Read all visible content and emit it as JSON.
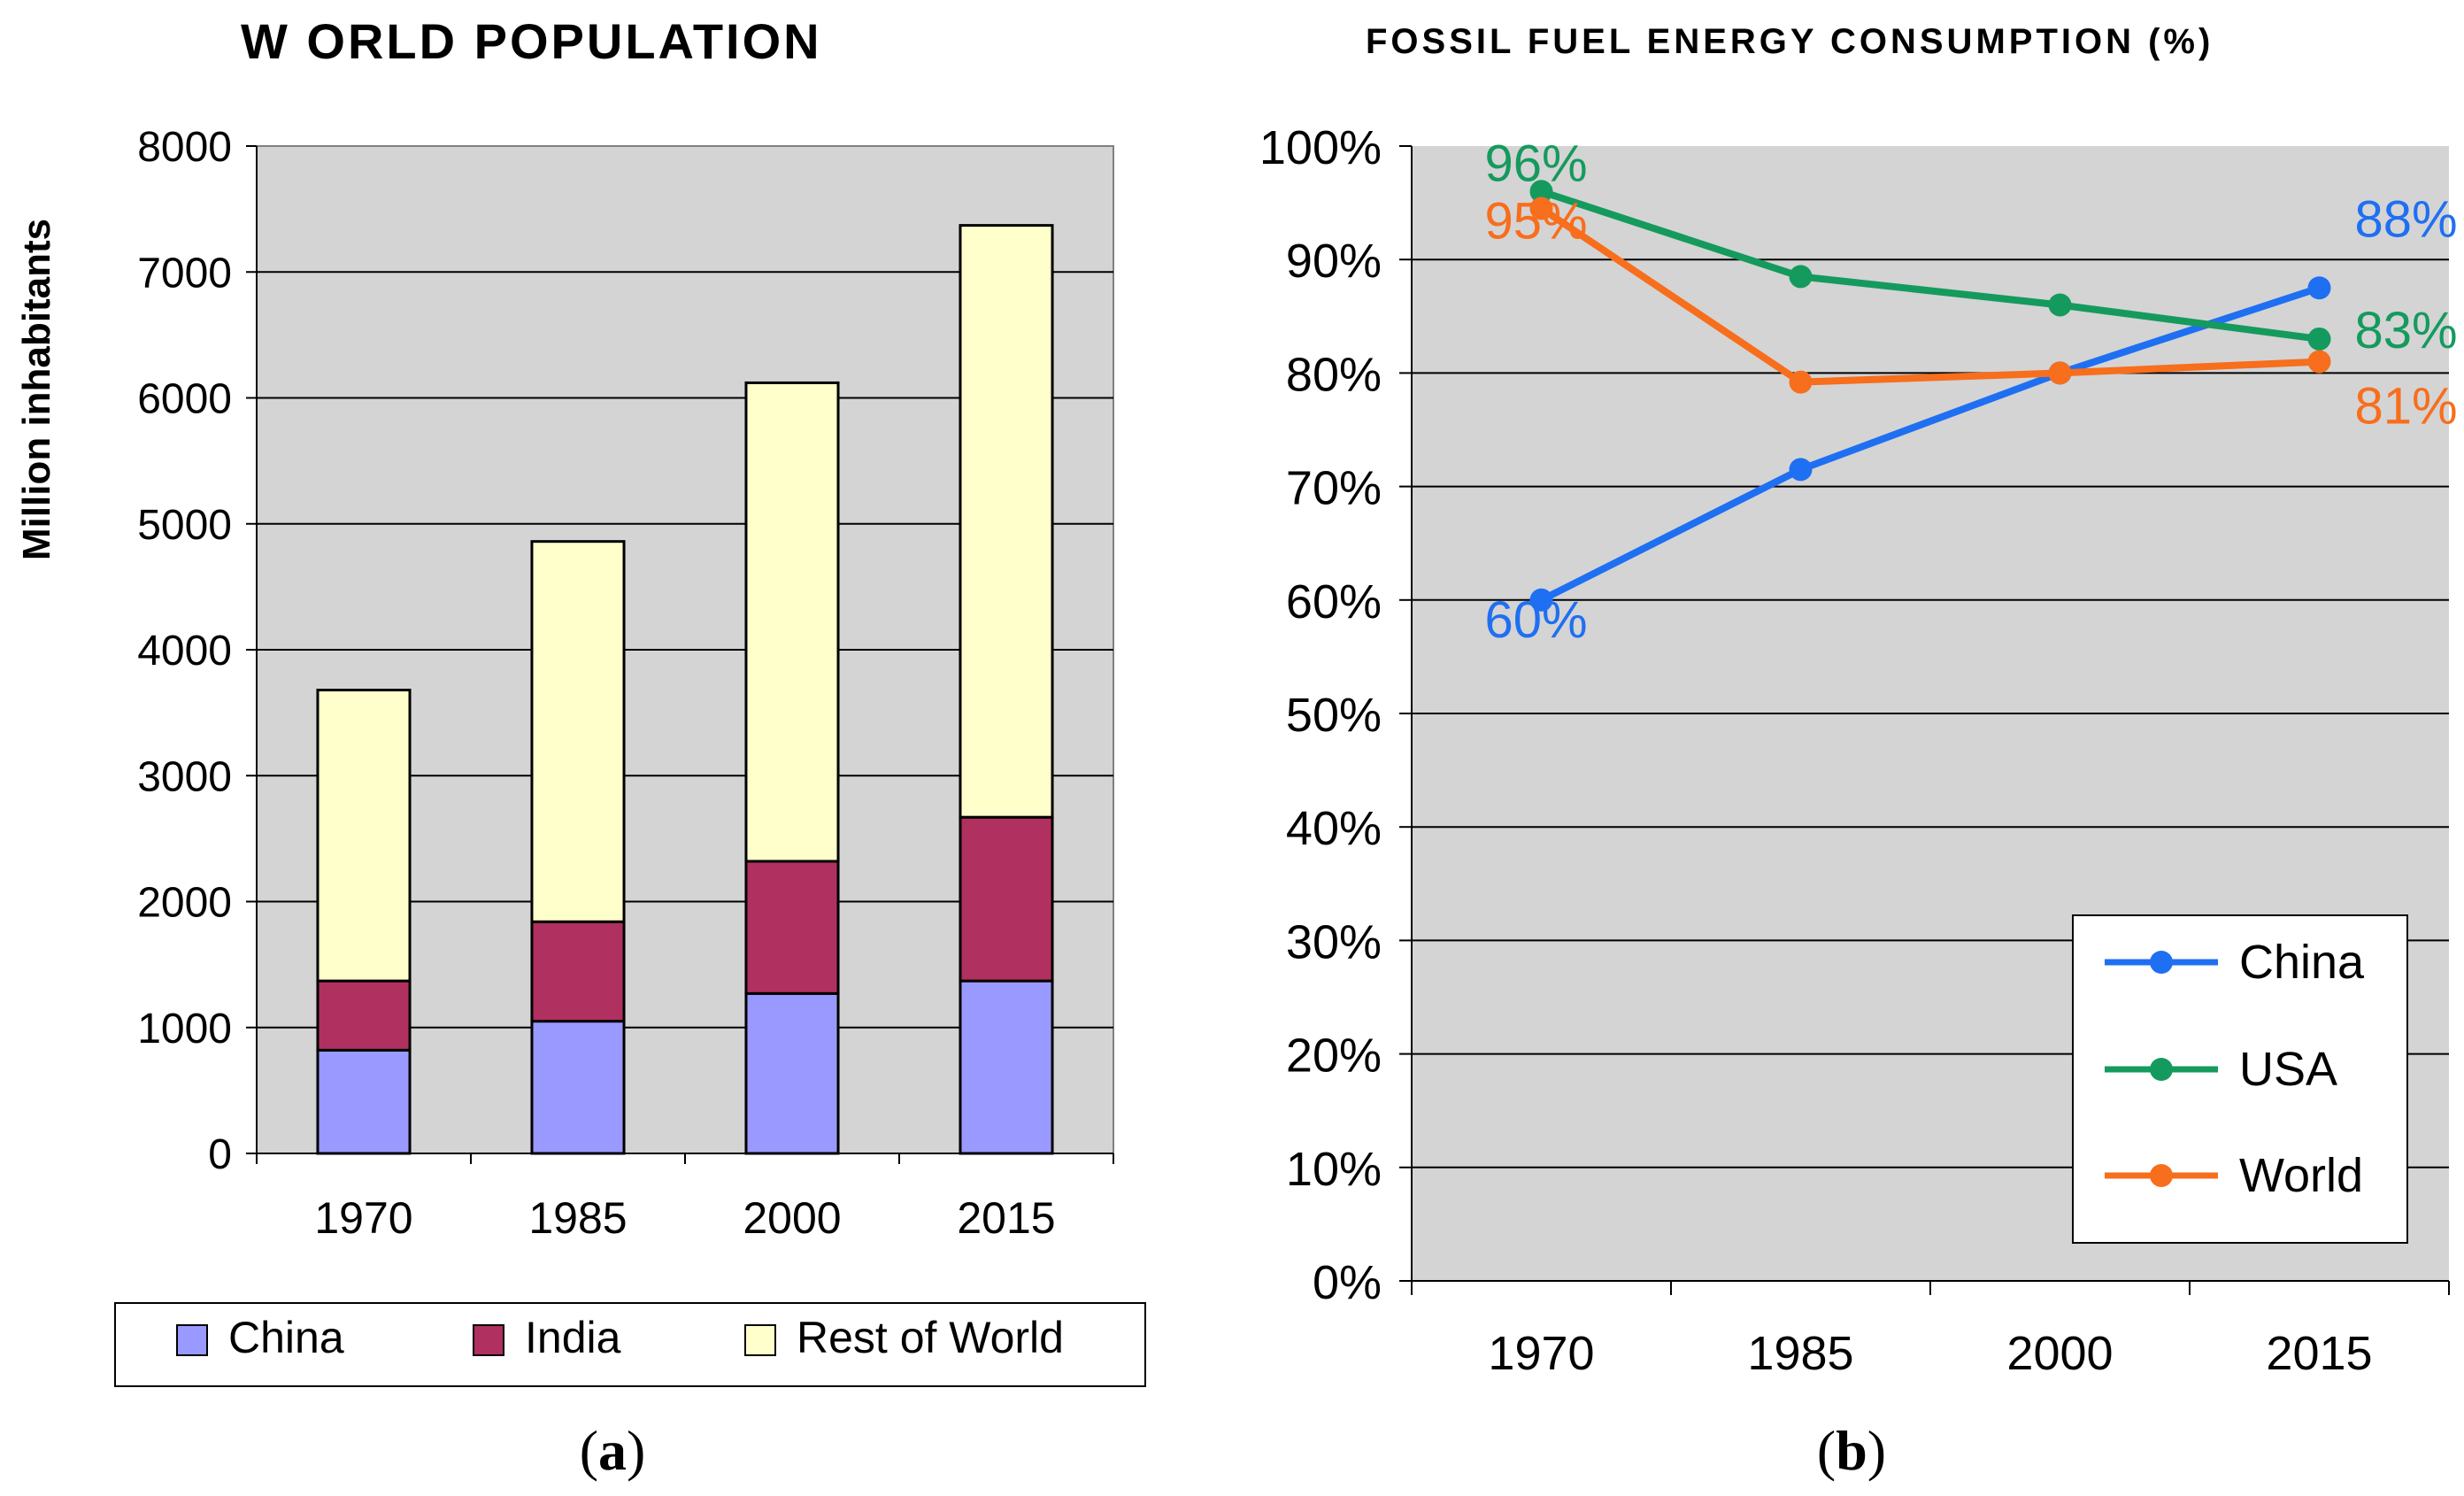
{
  "panels": {
    "a_label": "a",
    "b_label": "b"
  },
  "colors": {
    "plot_bg": "#d4d4d4",
    "china_bar": "#9999ff",
    "india_bar": "#b03060",
    "rest_bar": "#ffffcc",
    "china_line": "#1f6ff2",
    "usa_line": "#159a5e",
    "world_line": "#f76e1c"
  },
  "chart_data": [
    {
      "type": "bar",
      "stacked": true,
      "title": "W ORLD POPULATION",
      "xlabel": "",
      "ylabel": "Million inhabitants",
      "ylim": [
        0,
        8000
      ],
      "yticks": [
        0,
        1000,
        2000,
        3000,
        4000,
        5000,
        6000,
        7000,
        8000
      ],
      "categories": [
        "1970",
        "1985",
        "2000",
        "2015"
      ],
      "series": [
        {
          "name": "China",
          "values": [
            820,
            1050,
            1270,
            1370
          ]
        },
        {
          "name": "India",
          "values": [
            550,
            790,
            1050,
            1300
          ]
        },
        {
          "name": "Rest of World",
          "values": [
            2310,
            3020,
            3800,
            4700
          ]
        }
      ],
      "legend": "bottom",
      "grid": true
    },
    {
      "type": "line",
      "title": "FOSSIL FUEL ENERGY CONSUMPTION (%)",
      "xlabel": "",
      "ylabel": "",
      "ylim": [
        0,
        100
      ],
      "yticks": [
        "0%",
        "10%",
        "20%",
        "30%",
        "40%",
        "50%",
        "60%",
        "70%",
        "80%",
        "90%",
        "100%"
      ],
      "categories": [
        "1970",
        "1985",
        "2000",
        "2015"
      ],
      "series": [
        {
          "name": "China",
          "values": [
            60,
            71.5,
            80,
            87.5
          ]
        },
        {
          "name": "USA",
          "values": [
            96,
            88.5,
            86,
            83
          ]
        },
        {
          "name": "World",
          "values": [
            94.5,
            79.2,
            80,
            81
          ]
        }
      ],
      "annotations": [
        {
          "series": "China",
          "text": "60%",
          "at": "1970"
        },
        {
          "series": "China",
          "text": "88%",
          "at": "2015"
        },
        {
          "series": "USA",
          "text": "96%",
          "at": "1970"
        },
        {
          "series": "USA",
          "text": "83%",
          "at": "2015"
        },
        {
          "series": "World",
          "text": "95%",
          "at": "1970"
        },
        {
          "series": "World",
          "text": "81%",
          "at": "2015"
        }
      ],
      "legend": "bottom-right",
      "grid": true
    }
  ]
}
